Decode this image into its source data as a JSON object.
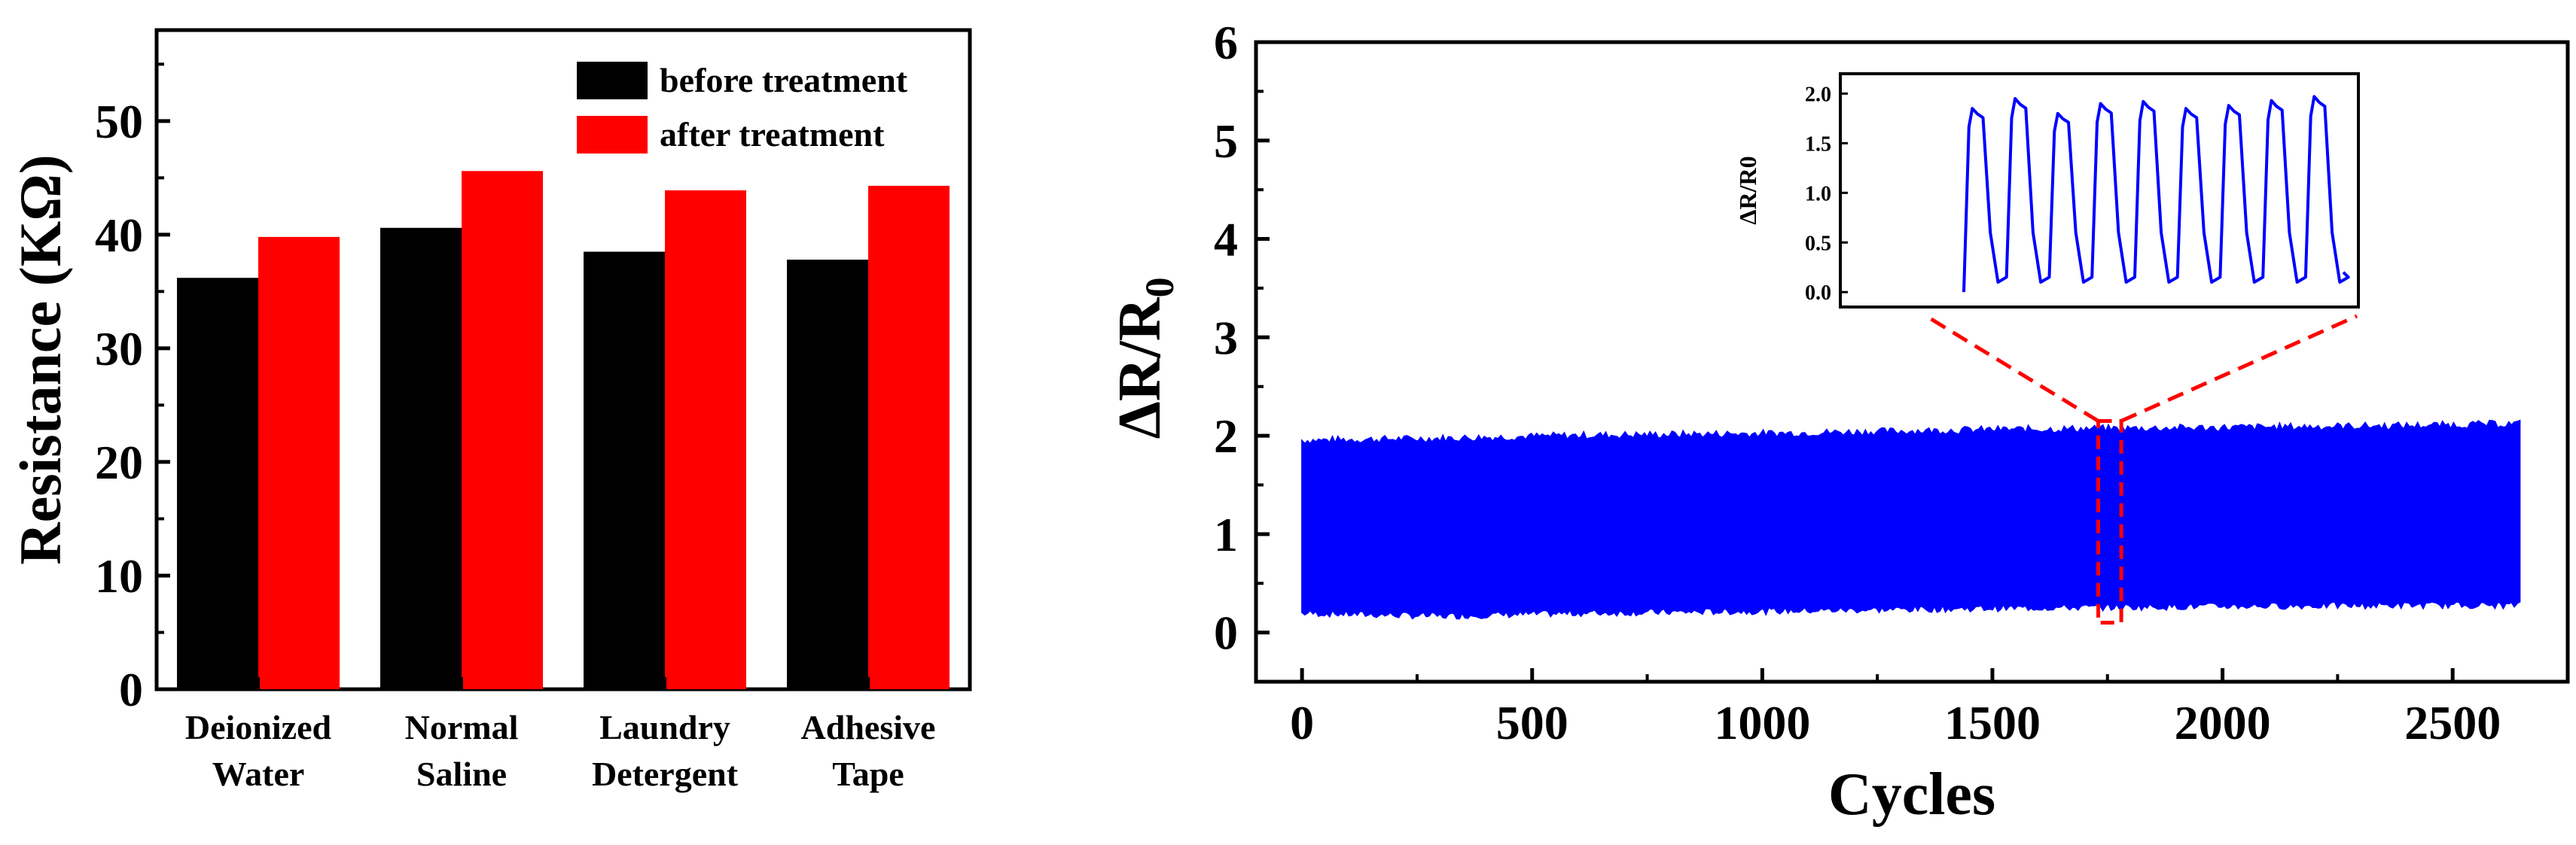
{
  "chart_data": [
    {
      "type": "bar",
      "title": "",
      "ylabel": "Resistance (KΩ)",
      "xlabel": "",
      "ylim": [
        0,
        58
      ],
      "yticks": [
        0,
        10,
        20,
        30,
        40,
        50
      ],
      "categories": [
        [
          "Deionized",
          "Water"
        ],
        [
          "Normal",
          "Saline"
        ],
        [
          "Laundry",
          "Detergent"
        ],
        [
          "Adhesive",
          "Tape"
        ]
      ],
      "series": [
        {
          "name": "before treatment",
          "color": "#000000",
          "values": [
            36.2,
            40.6,
            38.5,
            37.8
          ]
        },
        {
          "name": "after treatment",
          "color": "#ff0000",
          "values": [
            39.8,
            45.6,
            43.9,
            44.3
          ]
        }
      ],
      "legend_position": "top-right",
      "grid": false
    },
    {
      "type": "area",
      "title": "",
      "xlabel": "Cycles",
      "ylabel_main": "ΔR/R",
      "ylabel_sub": "0",
      "xlim": [
        -100,
        2750
      ],
      "ylim": [
        -0.5,
        6
      ],
      "xticks": [
        0,
        500,
        1000,
        1500,
        2000,
        2500
      ],
      "yticks": [
        0,
        1,
        2,
        3,
        4,
        5,
        6
      ],
      "series": [
        {
          "color": "#0000ff",
          "x_range": [
            0,
            2650
          ],
          "upper": [
            [
              0,
              1.95
            ],
            [
              300,
              1.97
            ],
            [
              600,
              2.0
            ],
            [
              1000,
              2.02
            ],
            [
              1500,
              2.06
            ],
            [
              2000,
              2.08
            ],
            [
              2400,
              2.1
            ],
            [
              2650,
              2.12
            ]
          ],
          "lower": [
            [
              0,
              0.2
            ],
            [
              300,
              0.17
            ],
            [
              600,
              0.2
            ],
            [
              1000,
              0.22
            ],
            [
              1500,
              0.25
            ],
            [
              2000,
              0.27
            ],
            [
              2400,
              0.28
            ],
            [
              2650,
              0.28
            ]
          ]
        }
      ],
      "zoom_box": {
        "x": [
          1730,
          1780
        ],
        "y": [
          0.1,
          2.15
        ],
        "color": "#ff0000"
      },
      "inset": {
        "ylabel": "ΔR/R0",
        "ylim": [
          -0.15,
          2.2
        ],
        "yticks": [
          "0.0",
          "0.5",
          "1.0",
          "1.5",
          "2.0"
        ],
        "cycles": 9,
        "peaks": [
          1.85,
          1.95,
          1.8,
          1.9,
          1.92,
          1.85,
          1.88,
          1.93,
          1.97
        ],
        "baseline": 0.1,
        "color": "#0000ff"
      },
      "grid": false
    }
  ]
}
